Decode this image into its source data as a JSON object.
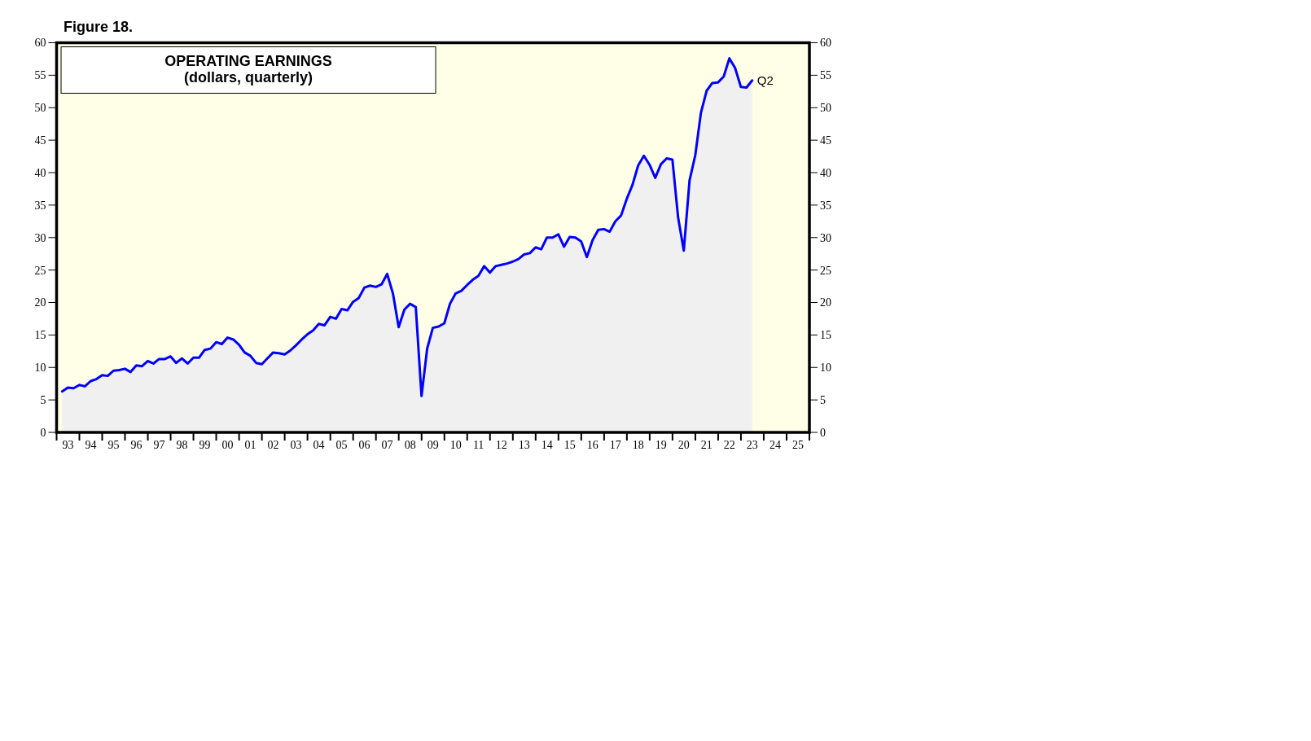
{
  "chart_data": {
    "type": "area",
    "title": "OPERATING EARNINGS",
    "subtitle": "(dollars, quarterly)",
    "annotations": [
      "Figure 18.",
      {
        "text": "Q2",
        "x": "2023-06-30",
        "y": 54.2
      }
    ],
    "x": [
      "1993-03-31",
      "1993-06-30",
      "1993-09-30",
      "1993-12-31",
      "1994-03-31",
      "1994-06-30",
      "1994-09-30",
      "1994-12-31",
      "1995-03-31",
      "1995-06-30",
      "1995-09-30",
      "1995-12-31",
      "1996-03-31",
      "1996-06-30",
      "1996-09-30",
      "1996-12-31",
      "1997-03-31",
      "1997-06-30",
      "1997-09-30",
      "1997-12-31",
      "1998-03-31",
      "1998-06-30",
      "1998-09-30",
      "1998-12-31",
      "1999-03-31",
      "1999-06-30",
      "1999-09-30",
      "1999-12-31",
      "2000-03-31",
      "2000-06-30",
      "2000-09-30",
      "2000-12-31",
      "2001-03-31",
      "2001-06-30",
      "2001-09-30",
      "2001-12-31",
      "2002-03-31",
      "2002-06-30",
      "2002-09-30",
      "2002-12-31",
      "2003-03-31",
      "2003-06-30",
      "2003-09-30",
      "2003-12-31",
      "2004-03-31",
      "2004-06-30",
      "2004-09-30",
      "2004-12-31",
      "2005-03-31",
      "2005-06-30",
      "2005-09-30",
      "2005-12-31",
      "2006-03-31",
      "2006-06-30",
      "2006-09-30",
      "2006-12-31",
      "2007-03-31",
      "2007-06-30",
      "2007-09-30",
      "2007-12-31",
      "2008-03-31",
      "2008-06-30",
      "2008-09-30",
      "2008-12-31",
      "2009-03-31",
      "2009-06-30",
      "2009-09-30",
      "2009-12-31",
      "2010-03-31",
      "2010-06-30",
      "2010-09-30",
      "2010-12-31",
      "2011-03-31",
      "2011-06-30",
      "2011-09-30",
      "2011-12-31",
      "2012-03-31",
      "2012-06-30",
      "2012-09-30",
      "2012-12-31",
      "2013-03-31",
      "2013-06-30",
      "2013-09-30",
      "2013-12-31",
      "2014-03-31",
      "2014-06-30",
      "2014-09-30",
      "2014-12-31",
      "2015-03-31",
      "2015-06-30",
      "2015-09-30",
      "2015-12-31",
      "2016-03-31",
      "2016-06-30",
      "2016-09-30",
      "2016-12-31",
      "2017-03-31",
      "2017-06-30",
      "2017-09-30",
      "2017-12-31",
      "2018-03-31",
      "2018-06-30",
      "2018-09-30",
      "2018-12-31",
      "2019-03-31",
      "2019-06-30",
      "2019-09-30",
      "2019-12-31",
      "2020-03-31",
      "2020-06-30",
      "2020-09-30",
      "2020-12-31",
      "2021-03-31",
      "2021-06-30",
      "2021-09-30",
      "2021-12-31",
      "2022-03-31",
      "2022-06-30",
      "2022-09-30",
      "2022-12-31",
      "2023-03-31",
      "2023-06-30"
    ],
    "series": [
      {
        "color": "#0000ff",
        "values": [
          6.3,
          6.9,
          6.8,
          7.3,
          7.1,
          7.9,
          8.2,
          8.8,
          8.7,
          9.5,
          9.6,
          9.8,
          9.3,
          10.3,
          10.2,
          11.0,
          10.6,
          11.3,
          11.3,
          11.7,
          10.7,
          11.4,
          10.6,
          11.5,
          11.5,
          12.7,
          12.9,
          13.9,
          13.6,
          14.6,
          14.3,
          13.5,
          12.3,
          11.8,
          10.7,
          10.5,
          11.4,
          12.3,
          12.2,
          12.0,
          12.6,
          13.4,
          14.3,
          15.1,
          15.7,
          16.7,
          16.5,
          17.8,
          17.5,
          19.0,
          18.8,
          20.1,
          20.7,
          22.3,
          22.6,
          22.4,
          22.8,
          24.4,
          21.4,
          16.2,
          18.9,
          19.8,
          19.3,
          5.6,
          12.9,
          16.1,
          16.3,
          16.8,
          19.8,
          21.4,
          21.8,
          22.7,
          23.5,
          24.1,
          25.6,
          24.6,
          25.6,
          25.8,
          26.0,
          26.3,
          26.7,
          27.4,
          27.6,
          28.5,
          28.2,
          30.0,
          30.0,
          30.5,
          28.6,
          30.1,
          30.0,
          29.4,
          27.0,
          29.6,
          31.2,
          31.3,
          30.9,
          32.5,
          33.4,
          36.0,
          38.1,
          41.1,
          42.6,
          41.2,
          39.2,
          41.3,
          42.2,
          42.0,
          33.1,
          28.0,
          38.8,
          42.7,
          49.2,
          52.6,
          53.8,
          53.9,
          54.8,
          57.6,
          56.1,
          53.2,
          53.1,
          54.2
        ]
      }
    ],
    "xlim": [
      "1993-01-01",
      "2026-01-01"
    ],
    "xticks": [
      {
        "value": "1993-01-01",
        "label": null
      },
      {
        "value": "1993-07-01",
        "label": "93"
      },
      {
        "value": "1994-01-01",
        "label": null
      },
      {
        "value": "1994-07-01",
        "label": "94"
      },
      {
        "value": "1995-01-01",
        "label": null
      },
      {
        "value": "1995-07-01",
        "label": "95"
      },
      {
        "value": "1996-01-01",
        "label": null
      },
      {
        "value": "1996-07-01",
        "label": "96"
      },
      {
        "value": "1997-01-01",
        "label": null
      },
      {
        "value": "1997-07-01",
        "label": "97"
      },
      {
        "value": "1998-01-01",
        "label": null
      },
      {
        "value": "1998-07-01",
        "label": "98"
      },
      {
        "value": "1999-01-01",
        "label": null
      },
      {
        "value": "1999-07-01",
        "label": "99"
      },
      {
        "value": "2000-01-01",
        "label": null
      },
      {
        "value": "2000-07-01",
        "label": "00"
      },
      {
        "value": "2001-01-01",
        "label": null
      },
      {
        "value": "2001-07-01",
        "label": "01"
      },
      {
        "value": "2002-01-01",
        "label": null
      },
      {
        "value": "2002-07-01",
        "label": "02"
      },
      {
        "value": "2003-01-01",
        "label": null
      },
      {
        "value": "2003-07-01",
        "label": "03"
      },
      {
        "value": "2004-01-01",
        "label": null
      },
      {
        "value": "2004-07-01",
        "label": "04"
      },
      {
        "value": "2005-01-01",
        "label": null
      },
      {
        "value": "2005-07-01",
        "label": "05"
      },
      {
        "value": "2006-01-01",
        "label": null
      },
      {
        "value": "2006-07-01",
        "label": "06"
      },
      {
        "value": "2007-01-01",
        "label": null
      },
      {
        "value": "2007-07-01",
        "label": "07"
      },
      {
        "value": "2008-01-01",
        "label": null
      },
      {
        "value": "2008-07-01",
        "label": "08"
      },
      {
        "value": "2009-01-01",
        "label": null
      },
      {
        "value": "2009-07-01",
        "label": "09"
      },
      {
        "value": "2010-01-01",
        "label": null
      },
      {
        "value": "2010-07-01",
        "label": "10"
      },
      {
        "value": "2011-01-01",
        "label": null
      },
      {
        "value": "2011-07-01",
        "label": "11"
      },
      {
        "value": "2012-01-01",
        "label": null
      },
      {
        "value": "2012-07-01",
        "label": "12"
      },
      {
        "value": "2013-01-01",
        "label": null
      },
      {
        "value": "2013-07-01",
        "label": "13"
      },
      {
        "value": "2014-01-01",
        "label": null
      },
      {
        "value": "2014-07-01",
        "label": "14"
      },
      {
        "value": "2015-01-01",
        "label": null
      },
      {
        "value": "2015-07-01",
        "label": "15"
      },
      {
        "value": "2016-01-01",
        "label": null
      },
      {
        "value": "2016-07-01",
        "label": "16"
      },
      {
        "value": "2017-01-01",
        "label": null
      },
      {
        "value": "2017-07-01",
        "label": "17"
      },
      {
        "value": "2018-01-01",
        "label": null
      },
      {
        "value": "2018-07-01",
        "label": "18"
      },
      {
        "value": "2019-01-01",
        "label": null
      },
      {
        "value": "2019-07-01",
        "label": "19"
      },
      {
        "value": "2020-01-01",
        "label": null
      },
      {
        "value": "2020-07-01",
        "label": "20"
      },
      {
        "value": "2021-01-01",
        "label": null
      },
      {
        "value": "2021-07-01",
        "label": "21"
      },
      {
        "value": "2022-01-01",
        "label": null
      },
      {
        "value": "2022-07-01",
        "label": "22"
      },
      {
        "value": "2023-01-01",
        "label": null
      },
      {
        "value": "2023-07-01",
        "label": "23"
      },
      {
        "value": "2024-01-01",
        "label": null
      },
      {
        "value": "2024-07-01",
        "label": "24"
      },
      {
        "value": "2025-01-01",
        "label": null
      },
      {
        "value": "2025-07-01",
        "label": "25"
      },
      {
        "value": "2026-01-01",
        "label": null
      }
    ],
    "ylim": [
      0,
      60
    ],
    "yticks": [
      0,
      5,
      10,
      15,
      20,
      25,
      30,
      35,
      40,
      45,
      50,
      55,
      60
    ],
    "y2lim": [
      0,
      60
    ],
    "y2ticks": [
      0,
      5,
      10,
      15,
      20,
      25,
      30,
      35,
      40,
      45,
      50,
      55,
      60
    ]
  }
}
